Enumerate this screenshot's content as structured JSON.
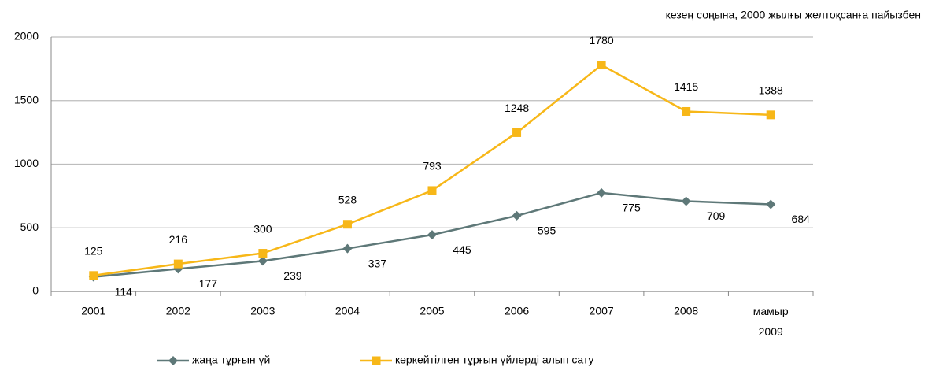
{
  "chart_data": {
    "type": "line",
    "subtitle": "кезең соңына, 2000 жылғы желтоқсанға пайызбен",
    "categories": [
      "2001",
      "2002",
      "2003",
      "2004",
      "2005",
      "2006",
      "2007",
      "2008",
      "мамыр 2009"
    ],
    "series": [
      {
        "name": "жаңа тұрғын үй",
        "color": "#5e7878",
        "values": [
          114,
          177,
          239,
          337,
          445,
          595,
          775,
          709,
          684
        ]
      },
      {
        "name": "көркейтілген тұрғын үйлерді алып сату",
        "color": "#f7b718",
        "values": [
          125,
          216,
          300,
          528,
          793,
          1248,
          1780,
          1415,
          1388
        ]
      }
    ],
    "ylim": [
      0,
      2000
    ],
    "yticks": [
      0,
      500,
      1000,
      1500,
      2000
    ],
    "grid": true
  }
}
